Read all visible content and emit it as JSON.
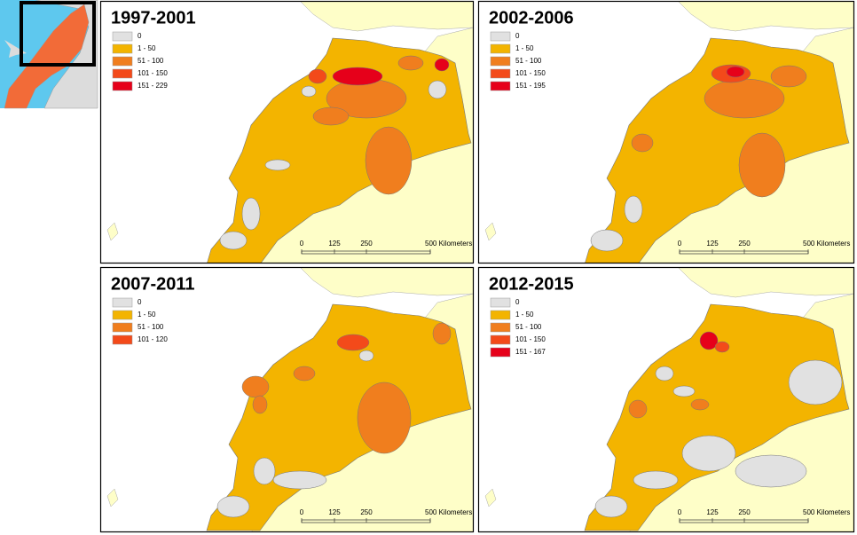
{
  "panels": [
    {
      "title": "1997-2001",
      "legend": [
        {
          "label": "0",
          "color": "#e1e1e1"
        },
        {
          "label": "1 - 50",
          "color": "#f3b400"
        },
        {
          "label": "51 - 100",
          "color": "#f07e1e"
        },
        {
          "label": "101 - 150",
          "color": "#f34a1a"
        },
        {
          "label": "151 - 229",
          "color": "#e6001a"
        }
      ],
      "scale_bar": [
        "0",
        "125",
        "250",
        "500 Kilometers"
      ]
    },
    {
      "title": "2002-2006",
      "legend": [
        {
          "label": "0",
          "color": "#e1e1e1"
        },
        {
          "label": "1 - 50",
          "color": "#f3b400"
        },
        {
          "label": "51 - 100",
          "color": "#f07e1e"
        },
        {
          "label": "101 - 150",
          "color": "#f34a1a"
        },
        {
          "label": "151 - 195",
          "color": "#e6001a"
        }
      ],
      "scale_bar": [
        "0",
        "125",
        "250",
        "500 Kilometers"
      ]
    },
    {
      "title": "2007-2011",
      "legend": [
        {
          "label": "0",
          "color": "#e1e1e1"
        },
        {
          "label": "1 - 50",
          "color": "#f3b400"
        },
        {
          "label": "51 - 100",
          "color": "#f07e1e"
        },
        {
          "label": "101 - 120",
          "color": "#f34a1a"
        }
      ],
      "scale_bar": [
        "0",
        "125",
        "250",
        "500 Kilometers"
      ]
    },
    {
      "title": "2012-2015",
      "legend": [
        {
          "label": "0",
          "color": "#e1e1e1"
        },
        {
          "label": "1 - 50",
          "color": "#f3b400"
        },
        {
          "label": "51 - 100",
          "color": "#f07e1e"
        },
        {
          "label": "101 - 150",
          "color": "#f34a1a"
        },
        {
          "label": "151 - 167",
          "color": "#e6001a"
        }
      ],
      "scale_bar": [
        "0",
        "125",
        "250",
        "500 Kilometers"
      ]
    }
  ]
}
